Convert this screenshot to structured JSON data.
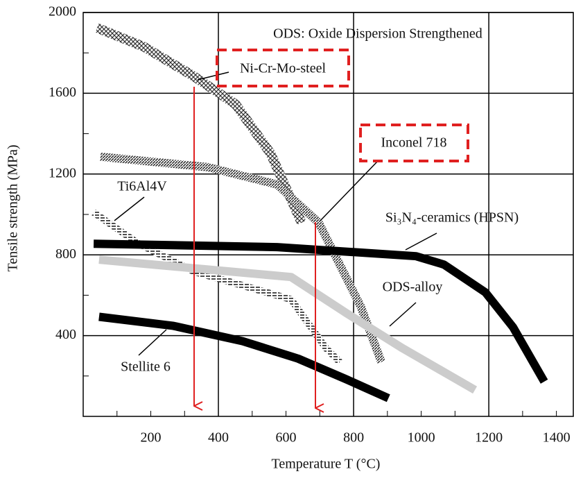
{
  "chart_data": {
    "type": "line",
    "xlabel": "Temperature T (°C)",
    "ylabel": "Tensile strength (MPa)",
    "note": "ODS: Oxide Dispersion Strengthened",
    "xlim": [
      0,
      1450
    ],
    "ylim": [
      0,
      2000
    ],
    "xticks": [
      200,
      400,
      600,
      800,
      1000,
      1200,
      1400
    ],
    "yticks": [
      400,
      800,
      1200,
      1600,
      2000
    ],
    "xminorticks": [
      100,
      300,
      500,
      700,
      900,
      1100,
      1300
    ],
    "yminorticks": [
      200,
      600,
      1000,
      1400,
      1800
    ],
    "xgrid": [
      400,
      800,
      1200
    ],
    "grid": true,
    "series": [
      {
        "name": "Ni-Cr-Mo-steel",
        "color": "#555555",
        "style": "crosshatch",
        "x": [
          41,
          180,
          328,
          451,
          554,
          646
        ],
        "values": [
          1924,
          1830,
          1683,
          1545,
          1303,
          959
        ]
      },
      {
        "name": "Inconel 718",
        "color": "#555555",
        "style": "hatch",
        "x": [
          51,
          369,
          574,
          697,
          821,
          882
        ],
        "values": [
          1286,
          1234,
          1148,
          959,
          545,
          269
        ]
      },
      {
        "name": "Ti6Al4V",
        "color": "#333333",
        "style": "dash-hatch",
        "x": [
          31,
          164,
          328,
          472,
          615,
          718,
          759
        ],
        "values": [
          1010,
          855,
          717,
          648,
          579,
          338,
          269
        ]
      },
      {
        "name": "Si₃N₄-ceramics (HPSN)",
        "color": "#000000",
        "style": "solid",
        "x": [
          31,
          574,
          985,
          1067,
          1190,
          1272,
          1364
        ],
        "values": [
          855,
          838,
          793,
          752,
          614,
          441,
          172
        ]
      },
      {
        "name": "ODS-alloy",
        "color": "#cccccc",
        "style": "solid",
        "x": [
          47,
          615,
          780,
          944,
          1159
        ],
        "values": [
          776,
          690,
          510,
          338,
          131
        ]
      },
      {
        "name": "Stellite 6",
        "color": "#000000",
        "style": "solid",
        "x": [
          47,
          267,
          472,
          636,
          779,
          903
        ],
        "values": [
          493,
          448,
          372,
          286,
          183,
          90
        ]
      }
    ]
  }
}
